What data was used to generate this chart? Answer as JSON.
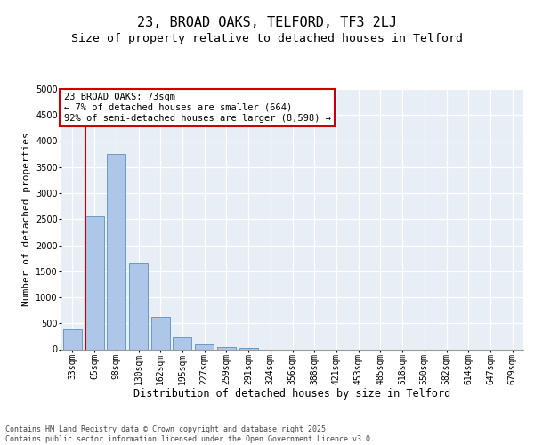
{
  "title1": "23, BROAD OAKS, TELFORD, TF3 2LJ",
  "title2": "Size of property relative to detached houses in Telford",
  "xlabel": "Distribution of detached houses by size in Telford",
  "ylabel": "Number of detached properties",
  "categories": [
    "33sqm",
    "65sqm",
    "98sqm",
    "130sqm",
    "162sqm",
    "195sqm",
    "227sqm",
    "259sqm",
    "291sqm",
    "324sqm",
    "356sqm",
    "388sqm",
    "421sqm",
    "453sqm",
    "485sqm",
    "518sqm",
    "550sqm",
    "582sqm",
    "614sqm",
    "647sqm",
    "679sqm"
  ],
  "values": [
    380,
    2550,
    3750,
    1650,
    620,
    235,
    95,
    50,
    30,
    0,
    0,
    0,
    0,
    0,
    0,
    0,
    0,
    0,
    0,
    0,
    0
  ],
  "bar_color": "#aec6e8",
  "bar_edge_color": "#5a8fc0",
  "vline_color": "#cc0000",
  "vline_bar_index": 1,
  "annotation_text": "23 BROAD OAKS: 73sqm\n← 7% of detached houses are smaller (664)\n92% of semi-detached houses are larger (8,598) →",
  "annotation_box_edgecolor": "#cc0000",
  "ylim": [
    0,
    5000
  ],
  "yticks": [
    0,
    500,
    1000,
    1500,
    2000,
    2500,
    3000,
    3500,
    4000,
    4500,
    5000
  ],
  "bg_color": "#e8eef6",
  "grid_color": "#ffffff",
  "footer_text": "Contains HM Land Registry data © Crown copyright and database right 2025.\nContains public sector information licensed under the Open Government Licence v3.0.",
  "title1_fontsize": 11,
  "title2_fontsize": 9.5,
  "ylabel_fontsize": 8,
  "xlabel_fontsize": 8.5,
  "tick_fontsize": 7,
  "annotation_fontsize": 7.5,
  "footer_fontsize": 6
}
